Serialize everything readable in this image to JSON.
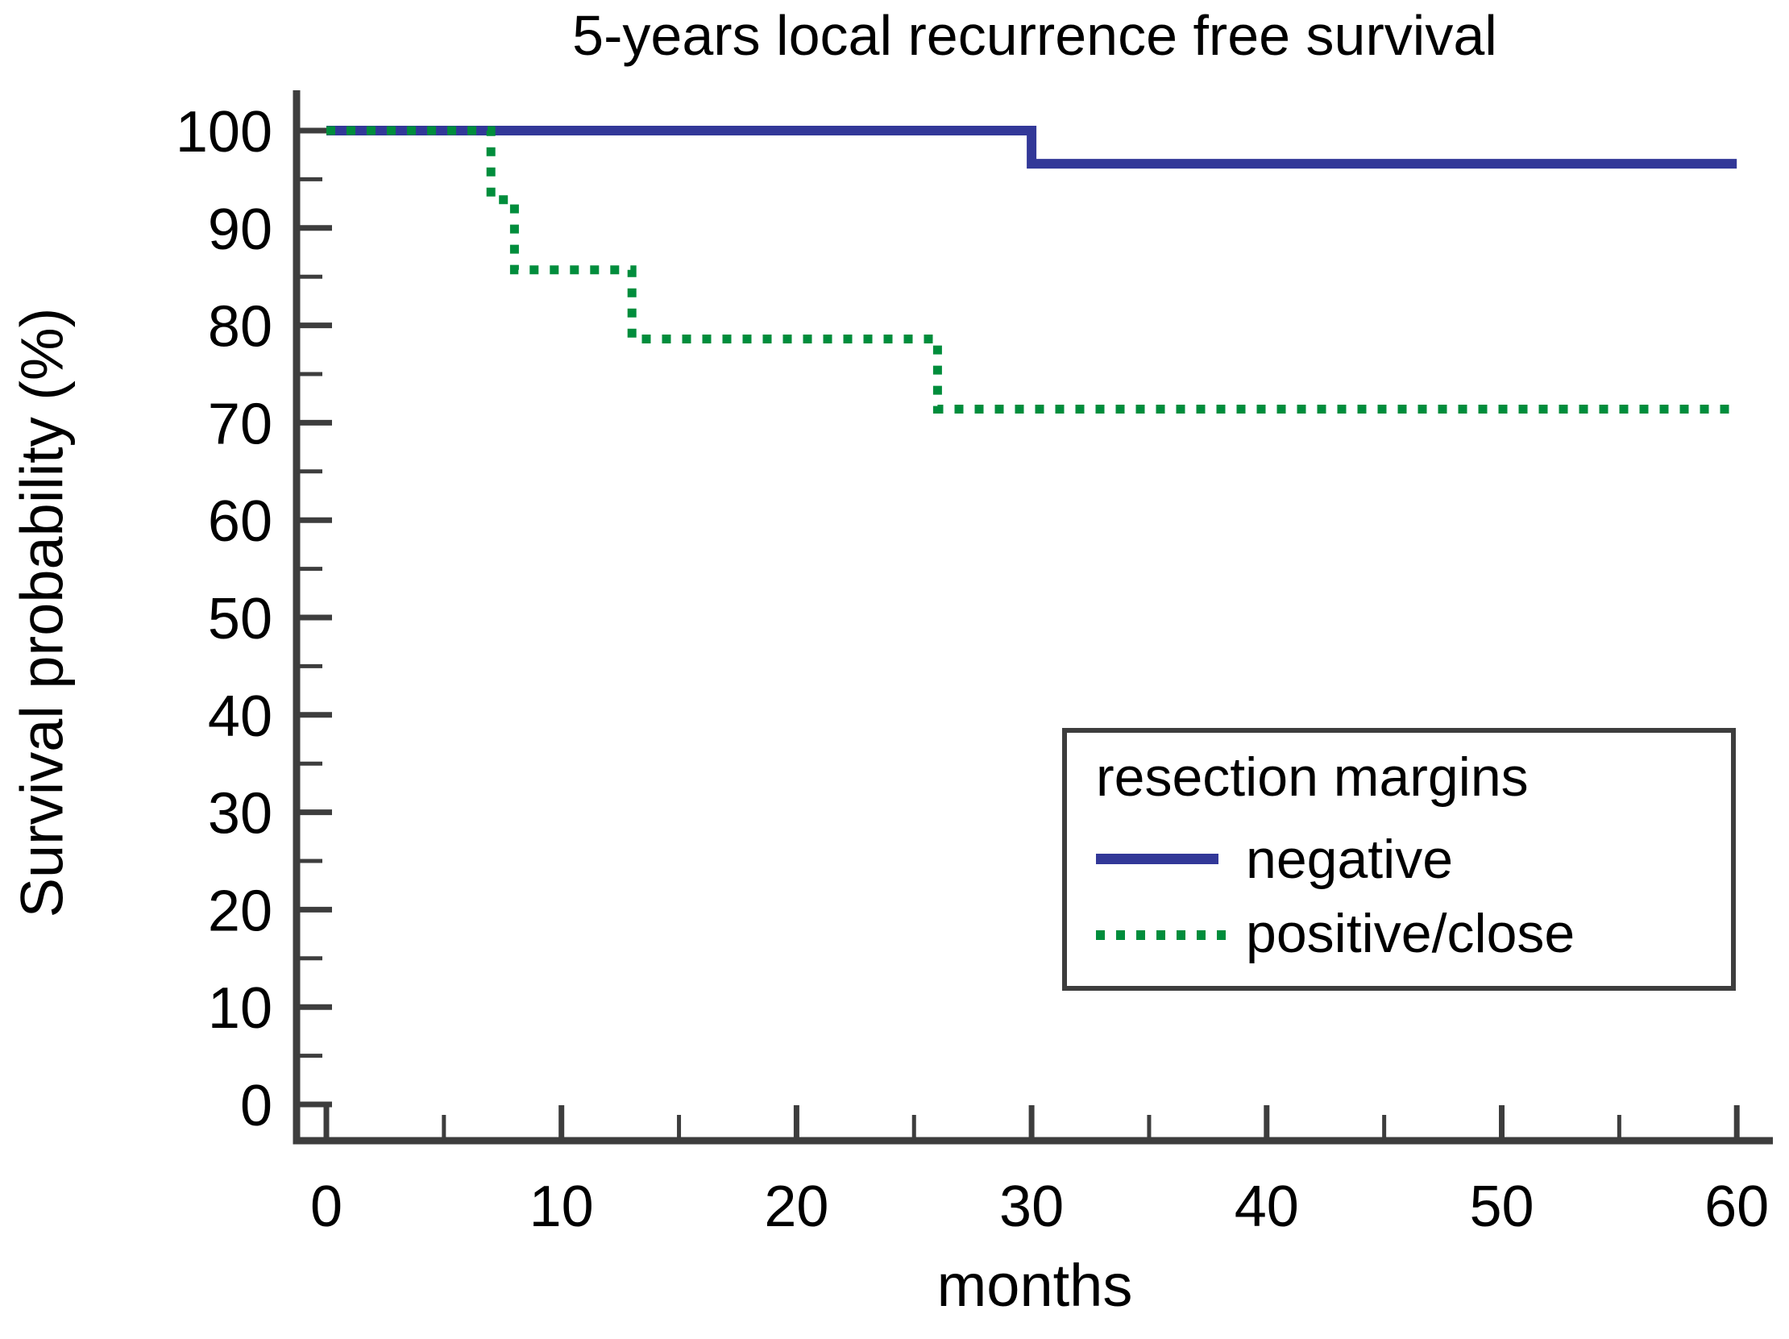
{
  "chart_data": {
    "type": "line",
    "subtype": "kaplan-meier-step",
    "title": "5-years local recurrence free survival",
    "xlabel": "months",
    "ylabel": "Survival probability (%)",
    "xlim": [
      0,
      60
    ],
    "ylim": [
      0,
      100
    ],
    "x_major_ticks": [
      0,
      10,
      20,
      30,
      40,
      50,
      60
    ],
    "x_minor_ticks": [
      5,
      15,
      25,
      35,
      45,
      55
    ],
    "y_major_ticks": [
      0,
      10,
      20,
      30,
      40,
      50,
      60,
      70,
      80,
      90,
      100
    ],
    "y_minor_ticks": [
      5,
      15,
      25,
      35,
      45,
      55,
      65,
      75,
      85,
      95
    ],
    "grid": false,
    "colors": {
      "negative": "#323898",
      "positive_close": "#008d3c",
      "axis": "#3d3d3d",
      "text": "#000000"
    },
    "legend": {
      "title": "resection margins",
      "position": "lower right",
      "entries": [
        {
          "label": "negative",
          "style": "solid",
          "color": "#323898"
        },
        {
          "label": "positive/close",
          "style": "dotted",
          "color": "#008d3c"
        }
      ]
    },
    "series": [
      {
        "name": "negative",
        "style": "solid",
        "color": "#323898",
        "points": [
          [
            0,
            100
          ],
          [
            30,
            100
          ],
          [
            30,
            96.6
          ],
          [
            60,
            96.6
          ]
        ]
      },
      {
        "name": "positive/close",
        "style": "dotted",
        "color": "#008d3c",
        "points": [
          [
            0,
            100
          ],
          [
            7,
            100
          ],
          [
            7,
            92.9
          ],
          [
            8,
            92.9
          ],
          [
            8,
            85.7
          ],
          [
            13,
            85.7
          ],
          [
            13,
            78.6
          ],
          [
            26,
            78.6
          ],
          [
            26,
            71.4
          ],
          [
            60,
            71.4
          ]
        ]
      }
    ]
  }
}
